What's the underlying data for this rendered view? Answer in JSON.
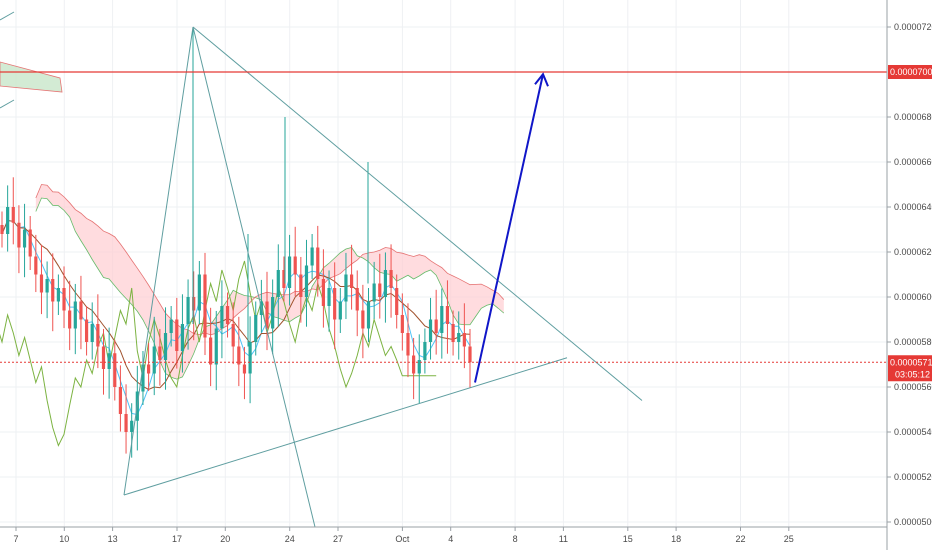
{
  "chart_data": {
    "type": "candlestick",
    "title": "",
    "xlabel": "",
    "ylabel": "",
    "grid": true,
    "ylim": [
      4.98e-05,
      7.3e-05
    ],
    "x_ticks": [
      {
        "day": 7,
        "label": "7"
      },
      {
        "day": 10,
        "label": "10"
      },
      {
        "day": 13,
        "label": "13"
      },
      {
        "day": 17,
        "label": "17"
      },
      {
        "day": 20,
        "label": "20"
      },
      {
        "day": 24,
        "label": "24"
      },
      {
        "day": 27,
        "label": "27"
      },
      {
        "day": 31,
        "label": "Oct"
      },
      {
        "day": 34,
        "label": "4"
      },
      {
        "day": 38,
        "label": "8"
      },
      {
        "day": 41,
        "label": "11"
      },
      {
        "day": 45,
        "label": "15"
      },
      {
        "day": 48,
        "label": "18"
      },
      {
        "day": 52,
        "label": "22"
      },
      {
        "day": 55,
        "label": "25"
      }
    ],
    "y_ticks": [
      {
        "value": 5e-05,
        "label": "0.00005000"
      },
      {
        "value": 5.2e-05,
        "label": "0.00005200"
      },
      {
        "value": 5.4e-05,
        "label": "0.00005400"
      },
      {
        "value": 5.6e-05,
        "label": "0.00005600"
      },
      {
        "value": 5.8e-05,
        "label": "0.00005800"
      },
      {
        "value": 6e-05,
        "label": "0.00006000"
      },
      {
        "value": 6.2e-05,
        "label": "0.00006200"
      },
      {
        "value": 6.4e-05,
        "label": "0.00006400"
      },
      {
        "value": 6.6e-05,
        "label": "0.00006600"
      },
      {
        "value": 6.8e-05,
        "label": "0.00006800"
      },
      {
        "value": 7.2e-05,
        "label": "0.00007200"
      }
    ],
    "target_level": {
      "value": 7e-05,
      "label": "0.00007000",
      "color": "#e53935"
    },
    "last_price": {
      "value": 5.71e-05,
      "label": "0.00005710",
      "countdown": "03:05:12",
      "color": "#e53935"
    },
    "candle_close_series": [
      6.28e-05,
      6.4e-05,
      6.33e-05,
      6.22e-05,
      6.3e-05,
      6.18e-05,
      6.1e-05,
      6.02e-05,
      6.08e-05,
      5.98e-05,
      6.04e-05,
      5.94e-05,
      5.86e-05,
      5.98e-05,
      5.9e-05,
      5.8e-05,
      5.88e-05,
      5.78e-05,
      5.68e-05,
      5.75e-05,
      5.6e-05,
      5.48e-05,
      5.4e-05,
      5.45e-05,
      5.58e-05,
      5.7e-05,
      5.66e-05,
      5.78e-05,
      5.72e-05,
      5.84e-05,
      5.9e-05,
      5.76e-05,
      5.88e-05,
      6e-05,
      5.94e-05,
      6.1e-05,
      5.82e-05,
      5.7e-05,
      5.86e-05,
      5.96e-05,
      5.88e-05,
      5.78e-05,
      5.7e-05,
      5.66e-05,
      5.8e-05,
      5.92e-05,
      5.98e-05,
      5.86e-05,
      6e-05,
      6.12e-05,
      6.04e-05,
      6.18e-05,
      6.1e-05,
      6e-05,
      6.14e-05,
      6.22e-05,
      6.08e-05,
      5.96e-05,
      6.04e-05,
      5.9e-05,
      5.98e-05,
      6.1e-05,
      6.04e-05,
      5.94e-05,
      5.86e-05,
      5.98e-05,
      6.06e-05,
      6e-05,
      6.12e-05,
      6.04e-05,
      5.92e-05,
      5.84e-05,
      5.74e-05,
      5.66e-05,
      5.72e-05,
      5.8e-05,
      5.9e-05,
      5.84e-05,
      5.96e-05,
      5.88e-05,
      5.8e-05,
      5.84e-05,
      5.78e-05,
      5.71e-05
    ],
    "drawings": {
      "triangle": [
        [
          -0.5,
          5.12e-05
        ],
        [
          28.5,
          6.26e-05
        ],
        [
          17.5,
          7.2e-05
        ]
      ],
      "down_trendline": [
        [
          17.5,
          7.2e-05
        ],
        [
          44.4,
          5.54e-05
        ]
      ],
      "up_trendline": [
        [
          11.4,
          5.12e-05
        ],
        [
          39.3,
          5.73e-05
        ]
      ],
      "descending_ray": [
        [
          17.5,
          7.2e-05
        ],
        [
          24.2,
          5e-05
        ]
      ],
      "projection_arrow": {
        "from": [
          35.0,
          5.62e-05
        ],
        "to": [
          38.0,
          6.99e-05
        ],
        "color": "#1016c8"
      }
    },
    "indicator": {
      "name": "ichimoku",
      "cloud_bull_color": "#c8e6c9",
      "cloud_bear_color": "#ffcdd2"
    }
  },
  "colors": {
    "up_candle": "#26a69a",
    "down_candle": "#ef5350",
    "trendline": "#5f9ea0",
    "grid": "#eef0f3",
    "axis": "#9aa0a6"
  }
}
